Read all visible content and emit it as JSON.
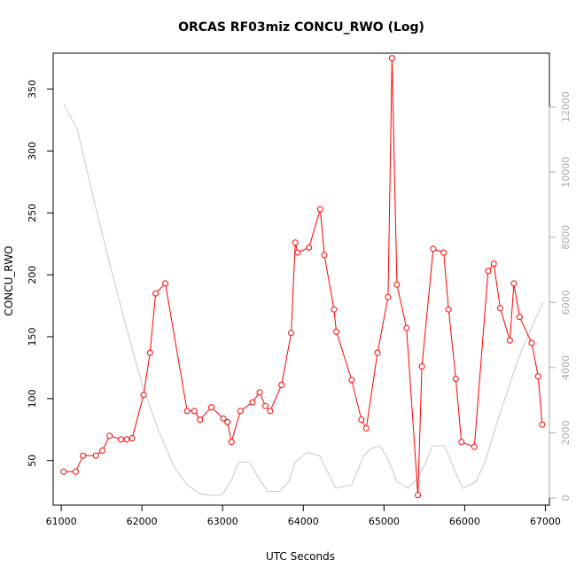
{
  "chart_data": {
    "type": "line",
    "title": "ORCAS RF03miz CONCU_RWO (Log)",
    "xlabel": "UTC Seconds",
    "ylabel": "CONCU_RWO",
    "xlim": [
      60900,
      67050
    ],
    "ylim": [
      14,
      379
    ],
    "y2lim": [
      -220,
      13650
    ],
    "x_ticks": [
      61000,
      62000,
      63000,
      64000,
      65000,
      66000,
      67000
    ],
    "y_ticks": [
      50,
      100,
      150,
      200,
      250,
      300,
      350
    ],
    "y2_ticks": [
      0,
      2000,
      4000,
      6000,
      8000,
      10000,
      12000
    ],
    "colors": {
      "primary": "#ff0000",
      "secondary": "#c8c8c8",
      "secondary_axis": "#aaaaaa"
    },
    "series": [
      {
        "role": "primary",
        "style": "line+circle",
        "x": [
          61030,
          61180,
          61270,
          61430,
          61510,
          61600,
          61740,
          61810,
          61880,
          62020,
          62100,
          62170,
          62290,
          62560,
          62650,
          62720,
          62860,
          63010,
          63060,
          63110,
          63220,
          63370,
          63460,
          63530,
          63590,
          63730,
          63850,
          63900,
          63930,
          64070,
          64210,
          64260,
          64380,
          64410,
          64600,
          64720,
          64780,
          64920,
          65050,
          65100,
          65160,
          65280,
          65420,
          65470,
          65610,
          65740,
          65800,
          65890,
          65960,
          66120,
          66290,
          66360,
          66440,
          66560,
          66610,
          66680,
          66830,
          66910,
          66960
        ],
        "y": [
          41,
          41,
          54,
          54,
          58,
          70,
          67,
          67,
          68,
          103,
          137,
          185,
          193,
          90,
          90,
          83,
          93,
          84,
          81,
          65,
          90,
          97,
          105,
          94,
          90,
          111,
          153,
          226,
          218,
          222,
          253,
          216,
          172,
          154,
          115,
          83,
          76,
          137,
          182,
          375,
          192,
          157,
          22,
          126,
          221,
          218,
          172,
          116,
          65,
          61,
          203,
          209,
          173,
          147,
          193,
          166,
          145,
          118,
          79
        ]
      },
      {
        "role": "secondary",
        "style": "line",
        "x": [
          61030,
          61200,
          61400,
          61600,
          61800,
          62000,
          62200,
          62400,
          62560,
          62660,
          62720,
          62860,
          63000,
          63120,
          63200,
          63330,
          63450,
          63560,
          63700,
          63820,
          63900,
          64050,
          64200,
          64280,
          64400,
          64600,
          64750,
          64830,
          64950,
          65050,
          65160,
          65300,
          65400,
          65500,
          65600,
          65750,
          65900,
          65980,
          66140,
          66250,
          66400,
          66600,
          66700,
          66970
        ],
        "y": [
          12100,
          11300,
          9200,
          7200,
          5300,
          3500,
          2100,
          950,
          400,
          230,
          130,
          70,
          100,
          600,
          1100,
          1100,
          600,
          200,
          200,
          500,
          1100,
          1400,
          1300,
          900,
          300,
          400,
          1300,
          1500,
          1600,
          1200,
          500,
          300,
          550,
          1000,
          1600,
          1600,
          700,
          300,
          500,
          1100,
          2300,
          3800,
          4500,
          6000
        ]
      }
    ]
  }
}
